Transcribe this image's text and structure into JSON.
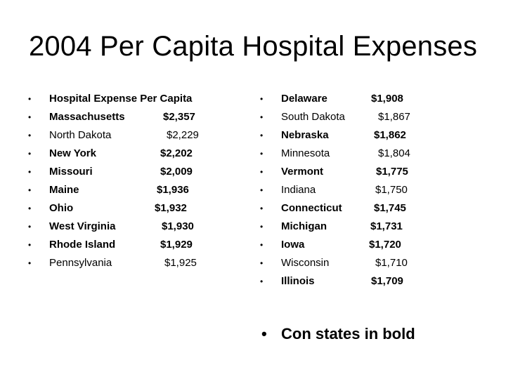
{
  "title": "2004 Per Capita Hospital Expenses",
  "left_column": [
    {
      "name": "Hospital Expense Per Capita",
      "value": "",
      "bold": true
    },
    {
      "name": "Massachusetts",
      "value": "$2,357",
      "bold": true
    },
    {
      "name": "North Dakota",
      "value": "$2,229",
      "bold": false
    },
    {
      "name": "New York",
      "value": "$2,202",
      "bold": true
    },
    {
      "name": "Missouri",
      "value": "$2,009",
      "bold": true
    },
    {
      "name": "Maine",
      "value": "$1,936",
      "bold": true
    },
    {
      "name": "Ohio",
      "value": "$1,932",
      "bold": true
    },
    {
      "name": "West Virginia",
      "value": "$1,930",
      "bold": true
    },
    {
      "name": "Rhode Island",
      "value": "$1,929",
      "bold": true
    },
    {
      "name": "Pennsylvania",
      "value": "$1,925",
      "bold": false
    }
  ],
  "right_column": [
    {
      "name": "Delaware",
      "value": "$1,908",
      "bold": true
    },
    {
      "name": "South Dakota",
      "value": "$1,867",
      "bold": false
    },
    {
      "name": "Nebraska",
      "value": "$1,862",
      "bold": true
    },
    {
      "name": "Minnesota",
      "value": "$1,804",
      "bold": false
    },
    {
      "name": "Vermont",
      "value": "$1,775",
      "bold": true
    },
    {
      "name": "Indiana",
      "value": "$1,750",
      "bold": false
    },
    {
      "name": "Connecticut",
      "value": "$1,745",
      "bold": true
    },
    {
      "name": "Michigan",
      "value": "$1,731",
      "bold": true
    },
    {
      "name": "Iowa",
      "value": "$1,720",
      "bold": true
    },
    {
      "name": "Wisconsin",
      "value": "$1,710",
      "bold": false
    },
    {
      "name": "Illinois",
      "value": "$1,709",
      "bold": true
    }
  ],
  "note": "Con states in bold",
  "bullet_char": "•"
}
